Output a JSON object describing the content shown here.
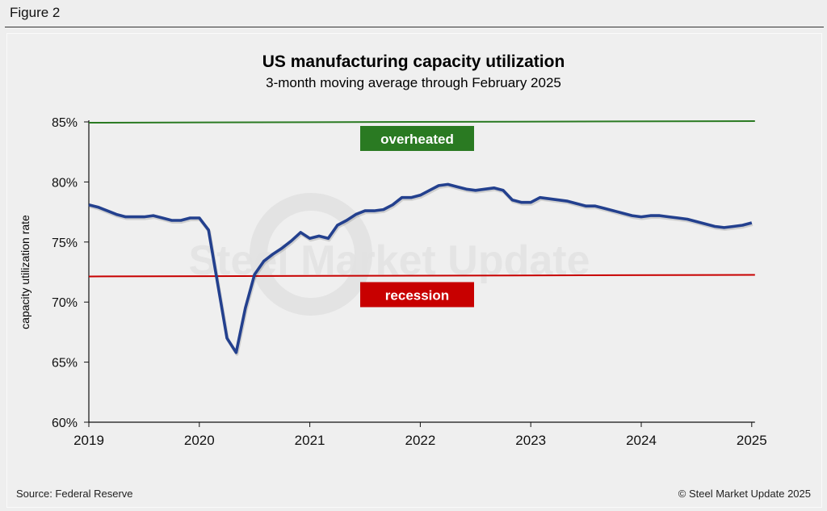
{
  "figure_label": "Figure 2",
  "chart_data": {
    "type": "line",
    "title": "US manufacturing capacity utilization",
    "subtitle": "3-month moving average through February 2025",
    "ylabel": "capacity utilization rate",
    "xlabel": "",
    "ylim": [
      60,
      85
    ],
    "yticks": [
      "60%",
      "65%",
      "70%",
      "75%",
      "80%",
      "85%"
    ],
    "ytick_values": [
      60,
      65,
      70,
      75,
      80,
      85
    ],
    "xticks": [
      "2019",
      "2020",
      "2021",
      "2022",
      "2023",
      "2024",
      "2025"
    ],
    "x_start": "2019-01",
    "x_end": "2025-02",
    "grid": false,
    "series": [
      {
        "color": "#23408e",
        "values": [
          78.1,
          77.9,
          77.6,
          77.3,
          77.1,
          77.1,
          77.1,
          77.2,
          77.0,
          76.8,
          76.8,
          77.0,
          77.0,
          76.0,
          71.5,
          67.0,
          65.8,
          69.5,
          72.3,
          73.4,
          74.0,
          74.5,
          75.1,
          75.8,
          75.3,
          75.5,
          75.3,
          76.4,
          76.8,
          77.3,
          77.6,
          77.6,
          77.7,
          78.1,
          78.7,
          78.7,
          78.9,
          79.3,
          79.7,
          79.8,
          79.6,
          79.4,
          79.3,
          79.4,
          79.5,
          79.3,
          78.5,
          78.3,
          78.3,
          78.7,
          78.6,
          78.5,
          78.4,
          78.2,
          78.0,
          78.0,
          77.8,
          77.6,
          77.4,
          77.2,
          77.1,
          77.2,
          77.2,
          77.1,
          77.0,
          76.9,
          76.7,
          76.5,
          76.3,
          76.2,
          76.3,
          76.4,
          76.6
        ]
      }
    ],
    "reference_lines": [
      {
        "label": "overheated",
        "value": 85,
        "color": "#2a7a22"
      },
      {
        "label": "recession",
        "value": 72.2,
        "color": "#c80000"
      }
    ],
    "watermark": "Steel Market Update"
  },
  "footer": {
    "source": "Source: Federal Reserve",
    "copyright": "© Steel Market Update 2025"
  }
}
